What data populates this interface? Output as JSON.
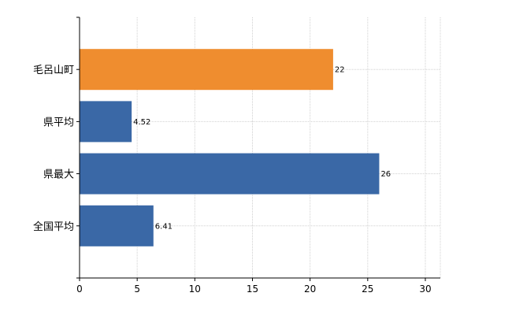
{
  "chart_data": {
    "type": "bar",
    "orientation": "horizontal",
    "categories": [
      "毛呂山町",
      "県平均",
      "県最大",
      "全国平均"
    ],
    "values": [
      22,
      4.52,
      26,
      6.41
    ],
    "value_labels": [
      "22",
      "4.52",
      "26",
      "6.41"
    ],
    "bar_colors": [
      "#ef8d2f",
      "#3a68a6",
      "#3a68a6",
      "#3a68a6"
    ],
    "xticks": [
      0,
      5,
      10,
      15,
      20,
      25,
      30
    ],
    "xlim": [
      0,
      31.3
    ],
    "grid": true,
    "title": "",
    "xlabel": "",
    "ylabel": ""
  }
}
